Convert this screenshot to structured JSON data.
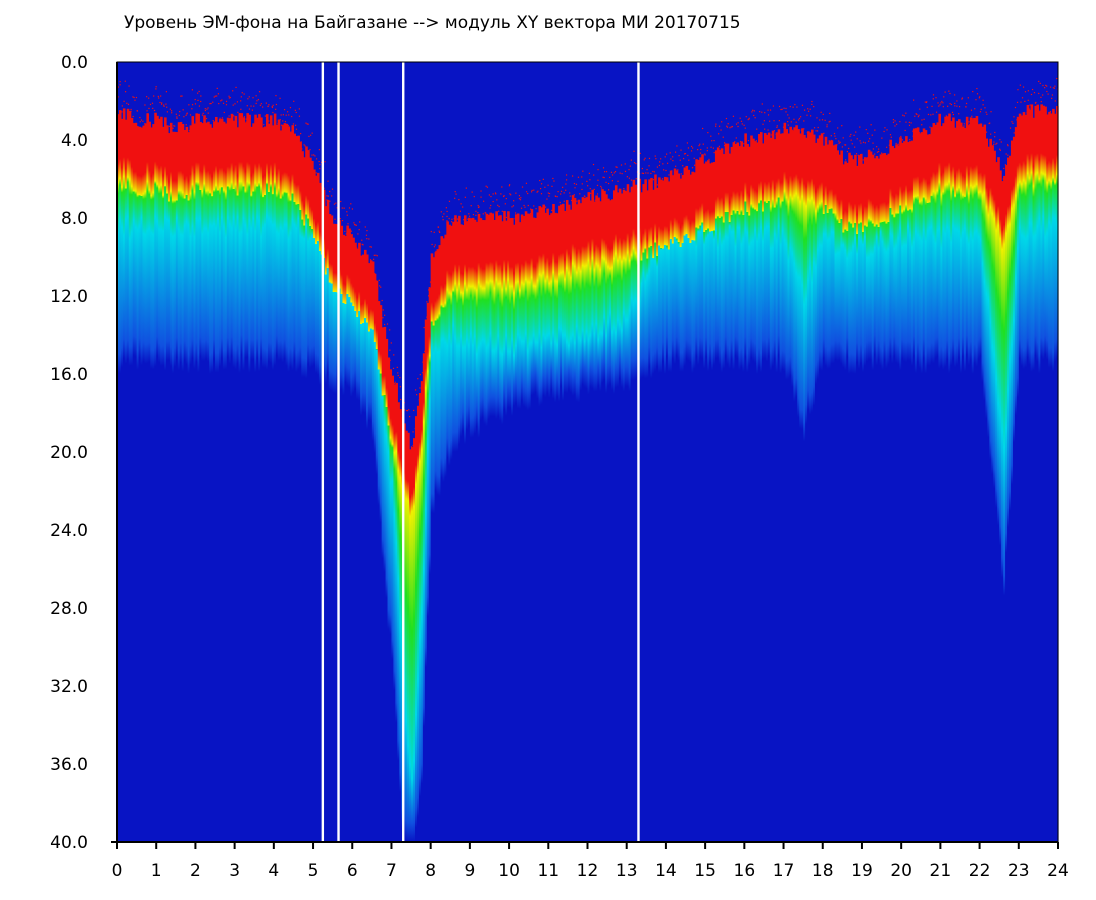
{
  "chart_data": {
    "type": "heatmap",
    "title": "Уровень ЭМ-фона на Байгазане   -->  модуль XY вектора МИ   20170715",
    "xlabel": "",
    "ylabel": "",
    "xlim": [
      0,
      24
    ],
    "ylim": [
      40,
      0
    ],
    "x_ticks": [
      "0",
      "1",
      "2",
      "3",
      "4",
      "5",
      "6",
      "7",
      "8",
      "9",
      "10",
      "11",
      "12",
      "13",
      "14",
      "15",
      "16",
      "17",
      "18",
      "19",
      "20",
      "21",
      "22",
      "23",
      "24"
    ],
    "y_ticks": [
      "0.0",
      "4.0",
      "8.0",
      "12.0",
      "16.0",
      "20.0",
      "24.0",
      "28.0",
      "32.0",
      "36.0",
      "40.0"
    ],
    "colors": {
      "background_level": "#0814c4",
      "cyan": "#00d8e8",
      "green": "#20e020",
      "yellow": "#f0f000",
      "red": "#f01010"
    },
    "profile": {
      "description_units": "hours vs level",
      "hour": [
        0,
        0.5,
        1,
        1.5,
        2,
        2.5,
        3,
        3.5,
        4,
        4.5,
        5,
        5.5,
        6,
        6.5,
        7,
        7.25,
        7.5,
        7.75,
        8,
        8.5,
        9,
        10,
        11,
        12,
        13,
        14,
        15,
        16,
        17,
        17.5,
        18,
        18.5,
        19,
        20,
        21,
        22,
        22.6,
        23,
        24
      ],
      "red_onset": [
        2.5,
        3,
        3,
        3.5,
        3,
        3,
        3,
        3,
        3,
        3.5,
        5.5,
        8,
        9,
        10.5,
        16,
        18,
        20,
        16,
        10,
        8,
        8,
        8,
        7.5,
        7,
        6.5,
        6,
        5,
        4,
        3.5,
        3.5,
        4,
        5,
        5,
        4,
        3,
        3,
        6,
        2.5,
        2.5
      ],
      "green_band_end": [
        8.5,
        8.5,
        8.5,
        8.5,
        8.5,
        8.5,
        8.5,
        8.5,
        8.5,
        8.5,
        9,
        10,
        11,
        13,
        22,
        30,
        38,
        28,
        15,
        14,
        14.5,
        14.5,
        14,
        14,
        13,
        9,
        9,
        9,
        9,
        12,
        9,
        9.5,
        9.5,
        9,
        9,
        9,
        20,
        8.5,
        8.5
      ],
      "cyan_end": [
        14.5,
        14.5,
        14.5,
        14.5,
        14.5,
        14.5,
        14.5,
        14.5,
        14.5,
        14.5,
        15,
        15.5,
        16,
        18,
        30,
        38,
        40,
        36,
        22,
        19,
        18,
        17,
        16,
        16,
        15.5,
        14.5,
        14.5,
        14.5,
        14.5,
        18,
        14.5,
        14.5,
        14.5,
        14.5,
        14.5,
        14.5,
        26,
        14.5,
        14.5
      ]
    },
    "gaps_hours": [
      5.25,
      5.65,
      7.3,
      13.3
    ]
  }
}
